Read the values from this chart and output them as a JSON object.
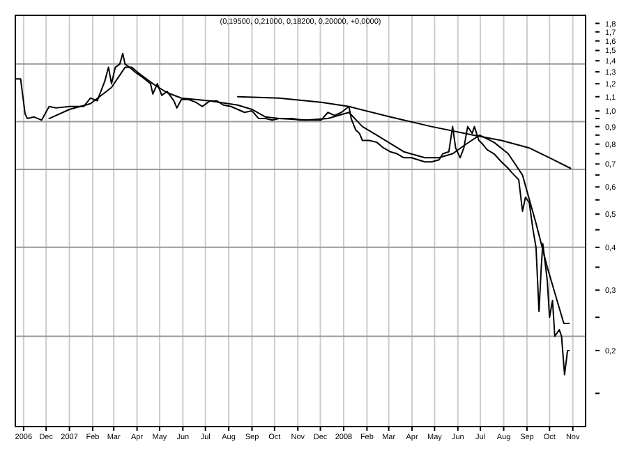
{
  "chart_data": {
    "type": "line",
    "title": "(0,19500, 0,21000, 0,18200, 0,20000, +0,0000)",
    "log": "y",
    "grid": "x",
    "xlim": [
      "2006-10-21",
      "2008-11-18"
    ],
    "xticks": [
      {
        "value": "2006-11",
        "label": "2006"
      },
      {
        "value": "2006-12",
        "label": "Dec"
      },
      {
        "value": "2007-01",
        "label": "2007"
      },
      {
        "value": "2007-02",
        "label": "Feb"
      },
      {
        "value": "2007-03",
        "label": "Mar"
      },
      {
        "value": "2007-04",
        "label": "Apr"
      },
      {
        "value": "2007-05",
        "label": "May"
      },
      {
        "value": "2007-06",
        "label": "Jun"
      },
      {
        "value": "2007-07",
        "label": "Jul"
      },
      {
        "value": "2007-08",
        "label": "Aug"
      },
      {
        "value": "2007-09",
        "label": "Sep"
      },
      {
        "value": "2007-10",
        "label": "Oct"
      },
      {
        "value": "2007-11",
        "label": "Nov"
      },
      {
        "value": "2007-12",
        "label": "Dec"
      },
      {
        "value": "2008-01",
        "label": "2008"
      },
      {
        "value": "2008-02",
        "label": "Feb"
      },
      {
        "value": "2008-03",
        "label": "Mar"
      },
      {
        "value": "2008-04",
        "label": "Apr"
      },
      {
        "value": "2008-05",
        "label": "May"
      },
      {
        "value": "2008-06",
        "label": "Jun"
      },
      {
        "value": "2008-07",
        "label": "Jul"
      },
      {
        "value": "2008-08",
        "label": "Aug"
      },
      {
        "value": "2008-09",
        "label": "Sep"
      },
      {
        "value": "2008-10",
        "label": "Oct"
      },
      {
        "value": "2008-11",
        "label": "Nov"
      }
    ],
    "ylim": [
      0.12,
      1.9
    ],
    "yticks": [
      {
        "value": 1.8,
        "label": "1,8"
      },
      {
        "value": 1.7,
        "label": "1,7"
      },
      {
        "value": 1.6,
        "label": "1,6"
      },
      {
        "value": 1.5,
        "label": "1,5"
      },
      {
        "value": 1.4,
        "label": "1,4"
      },
      {
        "value": 1.3,
        "label": "1,3"
      },
      {
        "value": 1.2,
        "label": "1,2"
      },
      {
        "value": 1.1,
        "label": "1,1"
      },
      {
        "value": 1.0,
        "label": "1,0"
      },
      {
        "value": 0.95,
        "label": null
      },
      {
        "value": 0.9,
        "label": "0,9"
      },
      {
        "value": 0.85,
        "label": null
      },
      {
        "value": 0.8,
        "label": "0,8"
      },
      {
        "value": 0.75,
        "label": null
      },
      {
        "value": 0.7,
        "label": "0,7"
      },
      {
        "value": 0.65,
        "label": null
      },
      {
        "value": 0.6,
        "label": "0,6"
      },
      {
        "value": 0.55,
        "label": null
      },
      {
        "value": 0.5,
        "label": "0,5"
      },
      {
        "value": 0.45,
        "label": null
      },
      {
        "value": 0.4,
        "label": "0,4"
      },
      {
        "value": 0.35,
        "label": null
      },
      {
        "value": 0.3,
        "label": "0,3"
      },
      {
        "value": 0.25,
        "label": null
      },
      {
        "value": 0.2,
        "label": "0,2"
      },
      {
        "value": 0.15,
        "label": null
      }
    ],
    "ref_lines": [
      {
        "axis": "y",
        "value": 1.37,
        "color": "#999999"
      },
      {
        "axis": "y",
        "value": 0.93,
        "color": "#999999"
      },
      {
        "axis": "y",
        "value": 0.675,
        "color": "#999999"
      },
      {
        "axis": "y",
        "value": 0.4,
        "color": "#999999"
      },
      {
        "axis": "y",
        "value": 0.22,
        "color": "#999999"
      }
    ],
    "series": [
      {
        "color": "#000000",
        "x": [
          "2006-10-21",
          "2006-10-28",
          "2006-11-03",
          "2006-11-06",
          "2006-11-15",
          "2006-11-25",
          "2006-12-05",
          "2006-12-14",
          "2007-01-01",
          "2007-01-20",
          "2007-01-29",
          "2007-02-07",
          "2007-02-17",
          "2007-02-22",
          "2007-02-26",
          "2007-03-03",
          "2007-03-09",
          "2007-03-13",
          "2007-03-16",
          "2007-03-22",
          "2007-03-31",
          "2007-04-09",
          "2007-04-19",
          "2007-04-22",
          "2007-04-28",
          "2007-05-04",
          "2007-05-11",
          "2007-05-20",
          "2007-05-24",
          "2007-05-30",
          "2007-06-08",
          "2007-06-18",
          "2007-06-27",
          "2007-07-07",
          "2007-07-16",
          "2007-07-25",
          "2007-08-04",
          "2007-08-13",
          "2007-08-22",
          "2007-09-01",
          "2007-09-10",
          "2007-09-19",
          "2007-09-28",
          "2007-10-07",
          "2007-10-16",
          "2007-10-25",
          "2007-11-04",
          "2007-11-13",
          "2007-11-22",
          "2007-12-02",
          "2007-12-11",
          "2007-12-20",
          "2007-12-29",
          "2008-01-08",
          "2008-01-11",
          "2008-01-17",
          "2008-01-22",
          "2008-01-26",
          "2008-02-04",
          "2008-02-14",
          "2008-02-23",
          "2008-03-03",
          "2008-03-12",
          "2008-03-21",
          "2008-03-31",
          "2008-04-09",
          "2008-04-18",
          "2008-04-27",
          "2008-05-07",
          "2008-05-12",
          "2008-05-20",
          "2008-05-25",
          "2008-05-29",
          "2008-06-04",
          "2008-06-09",
          "2008-06-14",
          "2008-06-20",
          "2008-06-23",
          "2008-06-29",
          "2008-07-04",
          "2008-07-10",
          "2008-07-19",
          "2008-07-29",
          "2008-08-07",
          "2008-08-12",
          "2008-08-21",
          "2008-08-26",
          "2008-08-30",
          "2008-09-04",
          "2008-09-09",
          "2008-09-13",
          "2008-09-17",
          "2008-09-20",
          "2008-09-22",
          "2008-09-28",
          "2008-10-01",
          "2008-10-05",
          "2008-10-08",
          "2008-10-14",
          "2008-10-17",
          "2008-10-21",
          "2008-10-25",
          "2008-10-27"
        ],
        "values": [
          1.24,
          1.24,
          0.98,
          0.95,
          0.96,
          0.94,
          1.03,
          1.02,
          1.03,
          1.03,
          1.09,
          1.07,
          1.22,
          1.34,
          1.2,
          1.34,
          1.37,
          1.47,
          1.37,
          1.34,
          1.29,
          1.25,
          1.2,
          1.12,
          1.2,
          1.11,
          1.14,
          1.07,
          1.02,
          1.08,
          1.08,
          1.06,
          1.03,
          1.07,
          1.07,
          1.04,
          1.03,
          1.01,
          0.99,
          1.0,
          0.95,
          0.95,
          0.94,
          0.95,
          0.95,
          0.95,
          0.94,
          0.94,
          0.94,
          0.94,
          0.99,
          0.97,
          0.99,
          1.03,
          0.95,
          0.88,
          0.86,
          0.82,
          0.82,
          0.81,
          0.78,
          0.76,
          0.75,
          0.73,
          0.73,
          0.72,
          0.71,
          0.71,
          0.72,
          0.75,
          0.76,
          0.9,
          0.78,
          0.73,
          0.78,
          0.9,
          0.86,
          0.9,
          0.82,
          0.8,
          0.77,
          0.75,
          0.71,
          0.68,
          0.66,
          0.63,
          0.51,
          0.56,
          0.54,
          0.45,
          0.4,
          0.26,
          0.35,
          0.41,
          0.32,
          0.25,
          0.28,
          0.22,
          0.23,
          0.22,
          0.17,
          0.2,
          0.2
        ]
      },
      {
        "color": "#000000",
        "x": [
          "2006-12-05",
          "2007-01-01",
          "2007-01-29",
          "2007-02-26",
          "2007-03-16",
          "2007-03-25",
          "2007-04-03",
          "2007-04-22",
          "2007-05-11",
          "2007-05-30",
          "2007-07-07",
          "2007-08-13",
          "2007-09-01",
          "2007-09-19",
          "2007-10-07",
          "2007-11-13",
          "2007-12-11",
          "2008-01-08",
          "2008-01-26",
          "2008-02-14",
          "2008-03-21",
          "2008-04-18",
          "2008-05-07",
          "2008-05-25",
          "2008-06-12",
          "2008-06-30",
          "2008-07-19",
          "2008-08-07",
          "2008-08-26",
          "2008-09-13",
          "2008-09-28",
          "2008-10-11",
          "2008-10-20",
          "2008-10-27"
        ],
        "values": [
          0.95,
          1.01,
          1.05,
          1.17,
          1.34,
          1.34,
          1.29,
          1.2,
          1.13,
          1.09,
          1.07,
          1.04,
          1.01,
          0.96,
          0.95,
          0.94,
          0.95,
          0.99,
          0.9,
          0.85,
          0.76,
          0.73,
          0.73,
          0.75,
          0.8,
          0.85,
          0.81,
          0.75,
          0.65,
          0.47,
          0.35,
          0.28,
          0.24,
          0.24
        ]
      },
      {
        "color": "#000000",
        "x": [
          "2007-08-13",
          "2007-10-07",
          "2007-12-02",
          "2008-01-08",
          "2008-03-03",
          "2008-04-27",
          "2008-06-21",
          "2008-07-29",
          "2008-09-04",
          "2008-10-01",
          "2008-10-29"
        ],
        "values": [
          1.1,
          1.09,
          1.06,
          1.03,
          0.96,
          0.9,
          0.85,
          0.82,
          0.78,
          0.73,
          0.68
        ]
      }
    ]
  }
}
